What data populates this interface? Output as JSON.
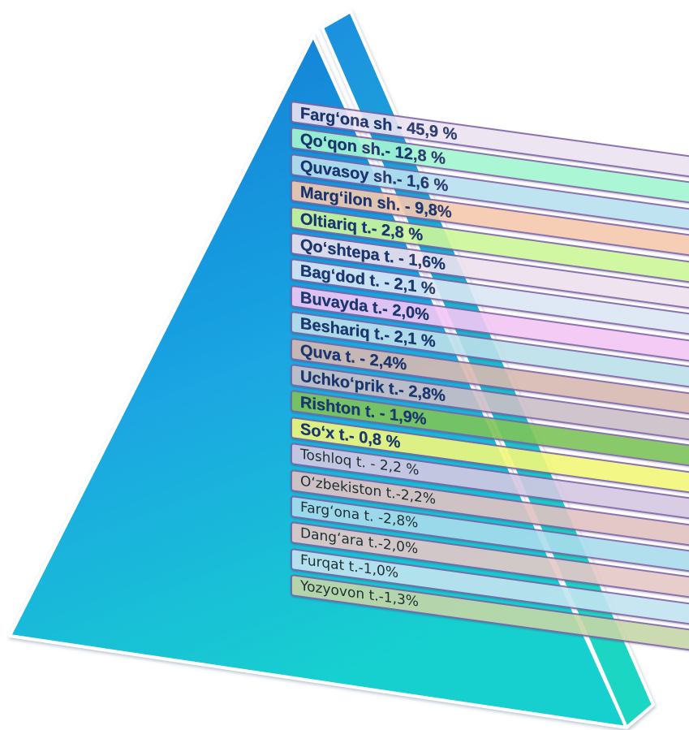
{
  "colors": {
    "pyramid_top": "#1479d4",
    "pyramid_mid": "#1aa6e2",
    "pyramid_bottom": "#19d0cf",
    "slab_border": "#7e64a6",
    "label_text": "#1b2a63"
  },
  "items": [
    {
      "label": "Farg‘ona sh - 45,9 %",
      "bg": "#ece3f1",
      "weight": "bold"
    },
    {
      "label": "Qo‘qon sh.- 12,8 %",
      "bg": "#a3f7d1",
      "weight": "bold"
    },
    {
      "label": "Quvasoy sh.- 1,6 %",
      "bg": "#b9e0ef",
      "weight": "bold"
    },
    {
      "label": "Marg‘ilon sh. - 9,8%",
      "bg": "#f5c9ad",
      "weight": "bold"
    },
    {
      "label": "Oltiariq t.- 2,8 %",
      "bg": "#cdf79a",
      "weight": "bold"
    },
    {
      "label": "Qo‘shtepa t. - 1,6%",
      "bg": "#ede1ee",
      "weight": "bold"
    },
    {
      "label": "Bag‘dod t. - 2,1 %",
      "bg": "#dbe7f5",
      "weight": "bold"
    },
    {
      "label": "Buvayda t.- 2,0%",
      "bg": "#f3c6f5",
      "weight": "bold"
    },
    {
      "label": "Beshariq t.- 2,1 %",
      "bg": "#bce0ea",
      "weight": "bold"
    },
    {
      "label": "Quva t.  - 2,4%",
      "bg": "#d8b9b2",
      "weight": "bold"
    },
    {
      "label": "Uchko‘prik t.- 2,8%",
      "bg": "#cbbfc7",
      "weight": "bold"
    },
    {
      "label": "Rishton t. - 1,9%",
      "bg": "#7ec45a",
      "weight": "bold"
    },
    {
      "label": "So‘x t.- 0,8 %",
      "bg": "#f2f77a",
      "weight": "bold"
    },
    {
      "label": "Toshloq t. - 2,2 %",
      "bg": "#d5c8e3",
      "weight": "normal"
    },
    {
      "label": "O‘zbekiston t.-2,2%",
      "bg": "#e2c3c3",
      "weight": "normal"
    },
    {
      "label": "Farg‘ona t. -2,8%",
      "bg": "#a9dced",
      "weight": "normal"
    },
    {
      "label": "Dang‘ara t.-2,0%",
      "bg": "#e6c8c8",
      "weight": "normal"
    },
    {
      "label": "Furqat t.-1,0%",
      "bg": "#c3e4f1",
      "weight": "normal"
    },
    {
      "label": "Yozyovon t.-1,3%",
      "bg": "#c6d7a8",
      "weight": "normal"
    }
  ]
}
